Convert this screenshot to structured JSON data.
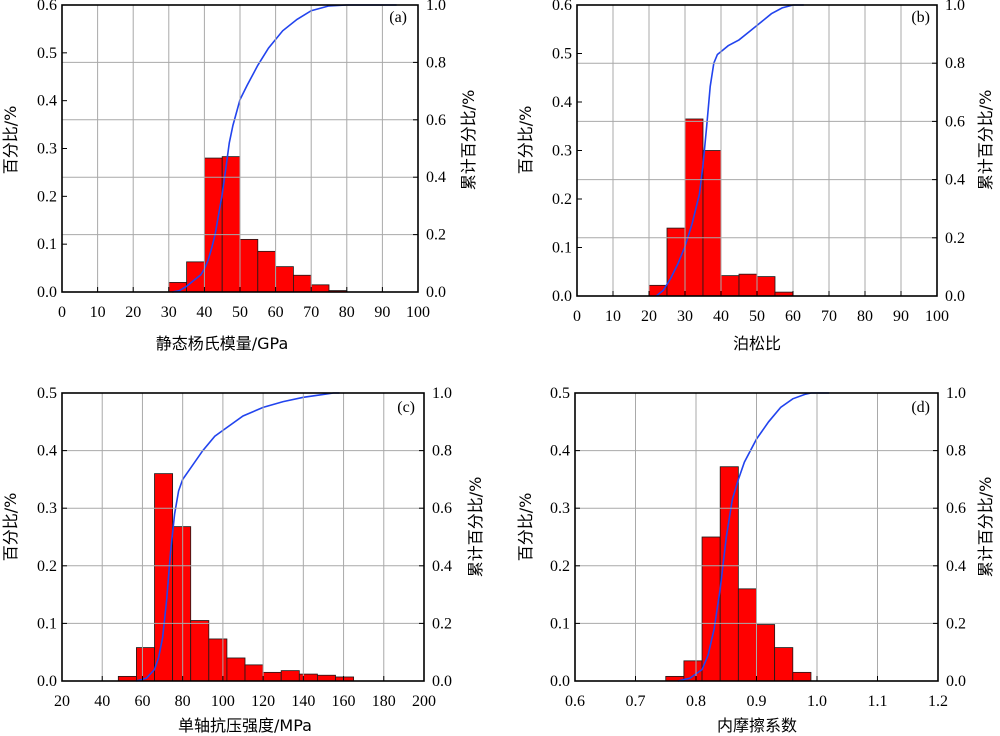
{
  "chart_data": [
    {
      "panel": "(a)",
      "type": "bar",
      "xlabel": "静态杨氏模量/GPa",
      "ylabel": "百分比/%",
      "y2label": "累计百分比/%",
      "xlim": [
        0,
        100
      ],
      "ylim": [
        0,
        0.6
      ],
      "y2lim": [
        0,
        1.0
      ],
      "xticks": [
        "0",
        "10",
        "20",
        "30",
        "40",
        "50",
        "60",
        "70",
        "80",
        "90",
        "100"
      ],
      "yticks": [
        "0.0",
        "0.1",
        "0.2",
        "0.3",
        "0.4",
        "0.5",
        "0.6"
      ],
      "y2ticks": [
        "0.0",
        "0.2",
        "0.4",
        "0.6",
        "0.8",
        "1.0"
      ],
      "grid": true,
      "bin_width": 5,
      "bins": [
        {
          "x0": 30,
          "value": 0.02
        },
        {
          "x0": 35,
          "value": 0.063
        },
        {
          "x0": 40,
          "value": 0.28
        },
        {
          "x0": 45,
          "value": 0.283
        },
        {
          "x0": 50,
          "value": 0.11
        },
        {
          "x0": 55,
          "value": 0.085
        },
        {
          "x0": 60,
          "value": 0.053
        },
        {
          "x0": 65,
          "value": 0.035
        },
        {
          "x0": 70,
          "value": 0.015
        },
        {
          "x0": 75,
          "value": 0.003
        }
      ],
      "cumulative": {
        "x": [
          31,
          33,
          35,
          37,
          39,
          40,
          41,
          42,
          43,
          44,
          45,
          46,
          47,
          48,
          50,
          52,
          55,
          58,
          62,
          66,
          70,
          75,
          80,
          85,
          90,
          94
        ],
        "y": [
          0.0,
          0.005,
          0.02,
          0.04,
          0.06,
          0.08,
          0.11,
          0.15,
          0.2,
          0.27,
          0.34,
          0.43,
          0.52,
          0.58,
          0.67,
          0.72,
          0.79,
          0.85,
          0.91,
          0.95,
          0.98,
          0.997,
          1.0,
          1.0,
          1.0,
          1.0
        ]
      }
    },
    {
      "panel": "(b)",
      "type": "bar",
      "xlabel": "泊松比",
      "ylabel": "百分比/%",
      "y2label": "累计百分比/%",
      "xlim": [
        0,
        100
      ],
      "ylim": [
        0,
        0.6
      ],
      "y2lim": [
        0,
        1.0
      ],
      "xticks": [
        "0",
        "10",
        "20",
        "30",
        "40",
        "50",
        "60",
        "70",
        "80",
        "90",
        "100"
      ],
      "yticks": [
        "0.0",
        "0.1",
        "0.2",
        "0.3",
        "0.4",
        "0.5",
        "0.6"
      ],
      "y2ticks": [
        "0.0",
        "0.2",
        "0.4",
        "0.6",
        "0.8",
        "1.0"
      ],
      "grid": true,
      "bin_width": 5,
      "bins": [
        {
          "x0": 20,
          "value": 0.022
        },
        {
          "x0": 25,
          "value": 0.14
        },
        {
          "x0": 30,
          "value": 0.365
        },
        {
          "x0": 35,
          "value": 0.3
        },
        {
          "x0": 40,
          "value": 0.042
        },
        {
          "x0": 45,
          "value": 0.045
        },
        {
          "x0": 50,
          "value": 0.04
        },
        {
          "x0": 55,
          "value": 0.008
        }
      ],
      "cumulative": {
        "x": [
          22,
          24,
          26,
          28,
          30,
          32,
          34,
          35,
          36,
          37,
          38,
          39,
          40,
          42,
          45,
          48,
          51,
          54,
          57,
          60,
          63
        ],
        "y": [
          0.0,
          0.02,
          0.06,
          0.11,
          0.17,
          0.25,
          0.35,
          0.45,
          0.58,
          0.72,
          0.8,
          0.83,
          0.84,
          0.86,
          0.88,
          0.91,
          0.94,
          0.97,
          0.99,
          1.0,
          1.0
        ]
      }
    },
    {
      "panel": "(c)",
      "type": "bar",
      "xlabel": "单轴抗压强度/MPa",
      "ylabel": "百分比/%",
      "y2label": "累计百分比/%",
      "xlim": [
        20,
        200
      ],
      "ylim": [
        0,
        0.5
      ],
      "y2lim": [
        0,
        1.0
      ],
      "xticks": [
        "20",
        "40",
        "60",
        "80",
        "100",
        "120",
        "140",
        "160",
        "180",
        "200"
      ],
      "yticks": [
        "0.0",
        "0.1",
        "0.2",
        "0.3",
        "0.4",
        "0.5"
      ],
      "y2ticks": [
        "0.0",
        "0.2",
        "0.4",
        "0.6",
        "0.8",
        "1.0"
      ],
      "grid": true,
      "bin_width": 9,
      "bins": [
        {
          "x0": 48,
          "value": 0.008
        },
        {
          "x0": 57,
          "value": 0.058
        },
        {
          "x0": 66,
          "value": 0.36
        },
        {
          "x0": 75,
          "value": 0.268
        },
        {
          "x0": 84,
          "value": 0.105
        },
        {
          "x0": 93,
          "value": 0.073
        },
        {
          "x0": 102,
          "value": 0.04
        },
        {
          "x0": 111,
          "value": 0.028
        },
        {
          "x0": 120,
          "value": 0.015
        },
        {
          "x0": 129,
          "value": 0.018
        },
        {
          "x0": 138,
          "value": 0.012
        },
        {
          "x0": 147,
          "value": 0.01
        },
        {
          "x0": 156,
          "value": 0.007
        }
      ],
      "cumulative": {
        "x": [
          57,
          62,
          66,
          68,
          70,
          72,
          74,
          76,
          78,
          80,
          84,
          90,
          96,
          100,
          110,
          120,
          130,
          140,
          150,
          155,
          158
        ],
        "y": [
          0.0,
          0.01,
          0.04,
          0.08,
          0.15,
          0.28,
          0.45,
          0.58,
          0.66,
          0.7,
          0.74,
          0.8,
          0.85,
          0.87,
          0.92,
          0.95,
          0.97,
          0.985,
          0.995,
          1.0,
          1.0
        ]
      }
    },
    {
      "panel": "(d)",
      "type": "bar",
      "xlabel": "内摩擦系数",
      "ylabel": "百分比/%",
      "y2label": "累计百分比/%",
      "xlim": [
        0.6,
        1.2
      ],
      "ylim": [
        0,
        0.5
      ],
      "y2lim": [
        0,
        1.0
      ],
      "xticks": [
        "0.6",
        "0.7",
        "0.8",
        "0.9",
        "1.0",
        "1.1",
        "1.2"
      ],
      "yticks": [
        "0.0",
        "0.1",
        "0.2",
        "0.3",
        "0.4",
        "0.5"
      ],
      "y2ticks": [
        "0.0",
        "0.2",
        "0.4",
        "0.6",
        "0.8",
        "1.0"
      ],
      "grid": true,
      "bin_width": 0.03,
      "bins": [
        {
          "x0": 0.75,
          "value": 0.008
        },
        {
          "x0": 0.78,
          "value": 0.035
        },
        {
          "x0": 0.81,
          "value": 0.25
        },
        {
          "x0": 0.84,
          "value": 0.372
        },
        {
          "x0": 0.87,
          "value": 0.16
        },
        {
          "x0": 0.9,
          "value": 0.098
        },
        {
          "x0": 0.93,
          "value": 0.058
        },
        {
          "x0": 0.96,
          "value": 0.015
        }
      ],
      "cumulative": {
        "x": [
          0.77,
          0.79,
          0.81,
          0.82,
          0.83,
          0.84,
          0.85,
          0.86,
          0.87,
          0.88,
          0.9,
          0.92,
          0.94,
          0.96,
          0.98,
          0.99,
          1.0,
          1.02
        ],
        "y": [
          0.0,
          0.01,
          0.04,
          0.09,
          0.18,
          0.32,
          0.5,
          0.63,
          0.7,
          0.76,
          0.84,
          0.9,
          0.95,
          0.98,
          0.995,
          1.0,
          1.0,
          1.0
        ]
      }
    }
  ]
}
